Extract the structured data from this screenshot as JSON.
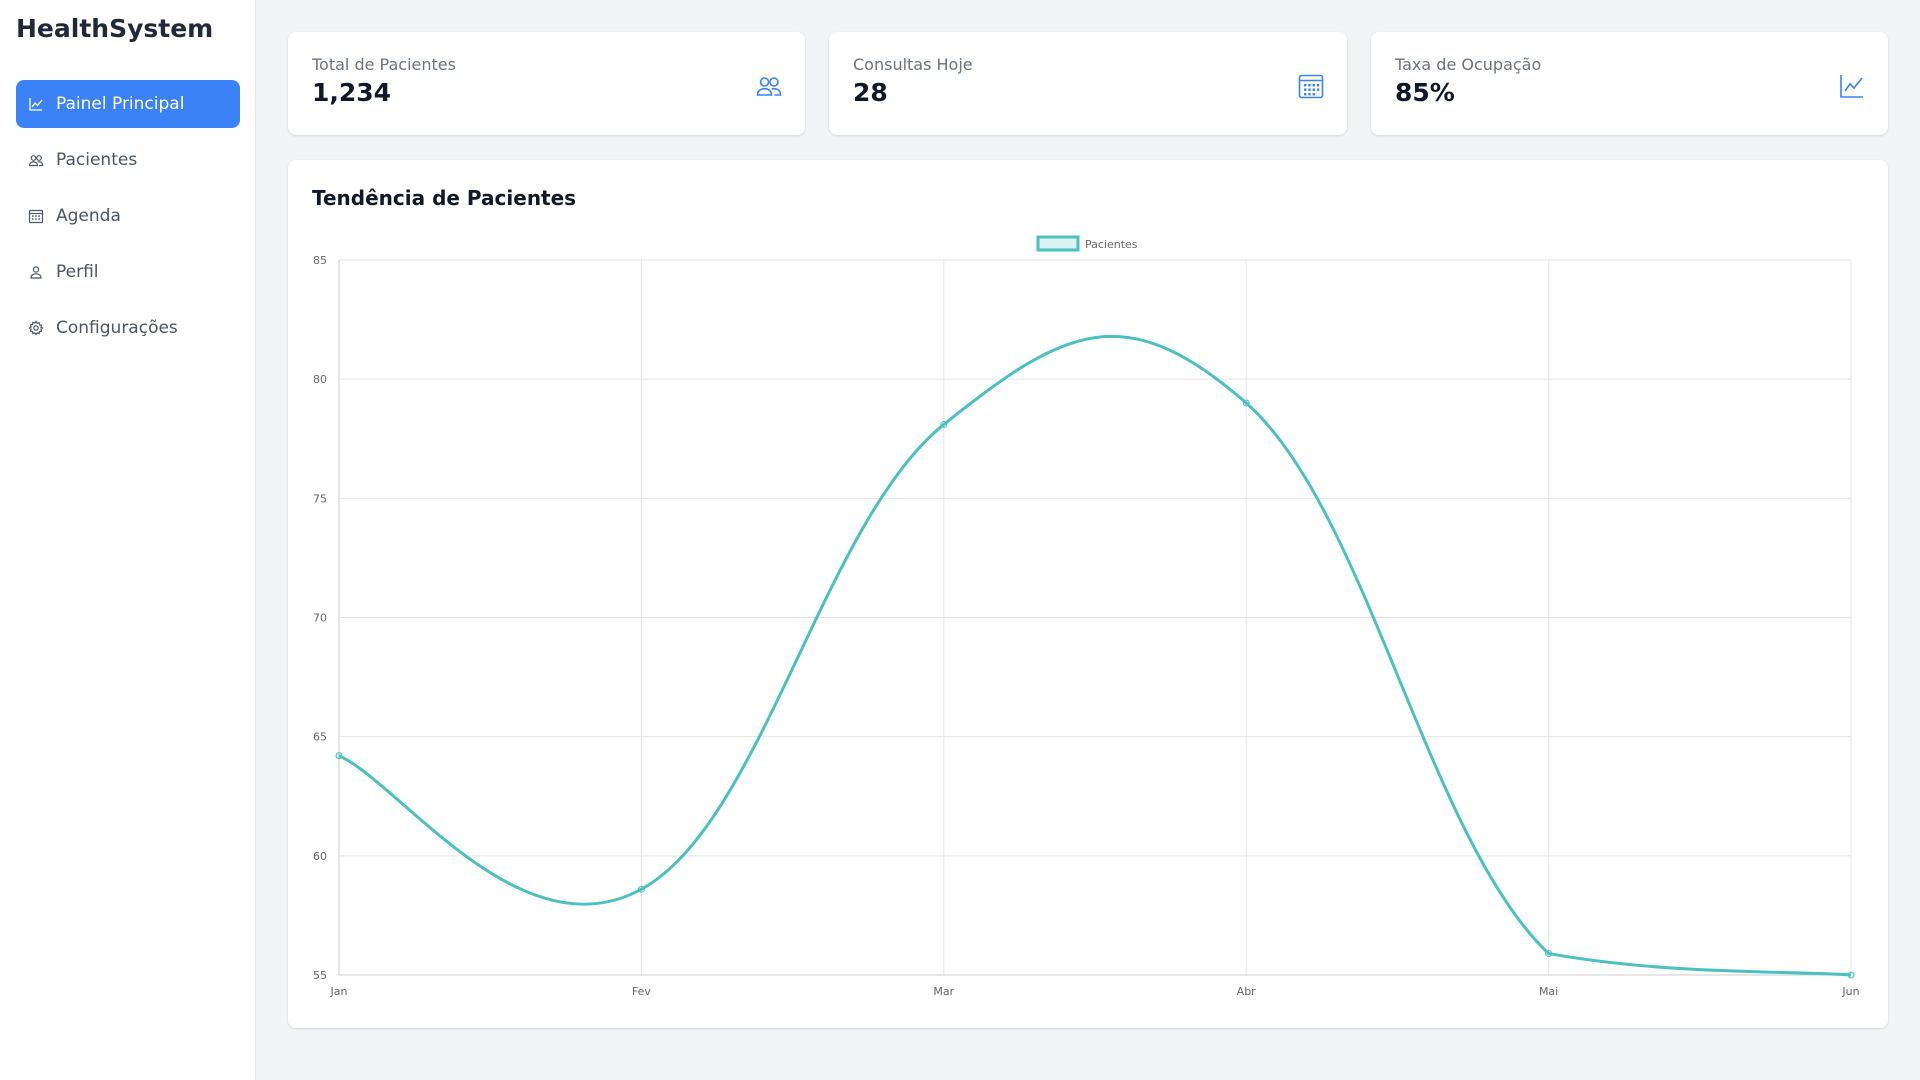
{
  "app": {
    "title": "HealthSystem"
  },
  "sidebar": {
    "items": [
      {
        "label": "Painel Principal",
        "icon": "line-chart-icon",
        "active": true
      },
      {
        "label": "Pacientes",
        "icon": "users-icon",
        "active": false
      },
      {
        "label": "Agenda",
        "icon": "calendar-icon",
        "active": false
      },
      {
        "label": "Perfil",
        "icon": "user-icon",
        "active": false
      },
      {
        "label": "Configurações",
        "icon": "gear-icon",
        "active": false
      }
    ]
  },
  "stats": [
    {
      "label": "Total de Pacientes",
      "value": "1,234",
      "icon": "users-icon"
    },
    {
      "label": "Consultas Hoje",
      "value": "28",
      "icon": "calendar-icon"
    },
    {
      "label": "Taxa de Ocupação",
      "value": "85%",
      "icon": "line-chart-icon"
    }
  ],
  "colors": {
    "accent": "#3b82f6",
    "series": "#4bc0c0",
    "background": "#f3f4f6"
  },
  "chart_data": {
    "type": "line",
    "title": "Tendência de Pacientes",
    "categories": [
      "Jan",
      "Fev",
      "Mar",
      "Abr",
      "Mai",
      "Jun"
    ],
    "series": [
      {
        "name": "Pacientes",
        "values": [
          64.2,
          58.6,
          78.1,
          79.0,
          55.9,
          55.0
        ],
        "color": "#4bc0c0"
      }
    ],
    "ylim": [
      55,
      85
    ],
    "yticks": [
      85,
      80,
      75,
      70,
      65,
      60,
      55
    ],
    "grid": true,
    "legend": "top-center",
    "xlabel": "",
    "ylabel": ""
  }
}
